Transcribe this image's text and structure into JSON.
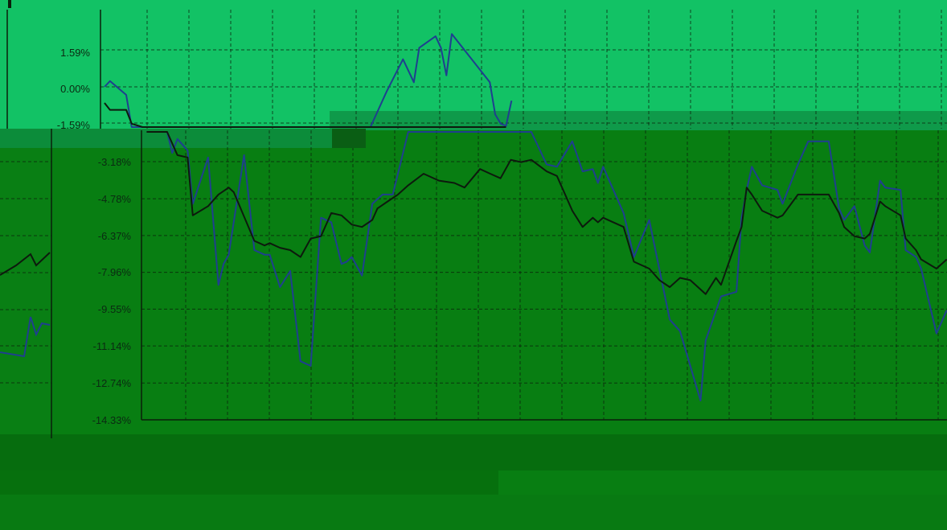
{
  "colors": {
    "bright_panel": "#12c265",
    "dark_panel": "#087e12",
    "bottom_strip": "#066d0e",
    "series_blue": "#1f3f8f",
    "series_black": "#0d1a0d",
    "grid": "#0b1f0b",
    "text": "#0b2a12"
  },
  "chart_data": {
    "type": "line",
    "title": "",
    "xlabel": "",
    "ylabel": "",
    "ylim": [
      -14.33,
      3.18
    ],
    "y_ticks": [
      "1.59%",
      "0.00%",
      "-1.59%",
      "-3.18%",
      "-4.78%",
      "-6.37%",
      "-7.96%",
      "-9.55%",
      "-11.14%",
      "-12.74%",
      "-14.33%"
    ],
    "y_tick_values": [
      1.59,
      0.0,
      -1.59,
      -3.18,
      -4.78,
      -6.37,
      -7.96,
      -9.55,
      -11.14,
      -12.74,
      -14.33
    ],
    "grid": true,
    "legend": "none",
    "series": [
      {
        "color": "#1f3f8f",
        "values": [
          [
            0,
            0.0
          ],
          [
            1,
            0.25
          ],
          [
            4,
            -0.35
          ],
          [
            5,
            -1.9
          ],
          [
            6,
            -2.8
          ],
          [
            7,
            -2.2
          ],
          [
            9,
            -2.7
          ],
          [
            10,
            -5.0
          ],
          [
            13,
            -3.0
          ],
          [
            15,
            -8.5
          ],
          [
            16,
            -7.6
          ],
          [
            17,
            -7.2
          ],
          [
            20,
            -2.9
          ],
          [
            22,
            -7.0
          ],
          [
            24,
            -7.2
          ],
          [
            25,
            -7.2
          ],
          [
            27,
            -8.6
          ],
          [
            29,
            -7.9
          ],
          [
            31,
            -11.8
          ],
          [
            33,
            -12.0
          ],
          [
            35,
            -5.6
          ],
          [
            37,
            -5.8
          ],
          [
            39,
            -7.6
          ],
          [
            40,
            -7.5
          ],
          [
            41,
            -7.3
          ],
          [
            43,
            -8.1
          ],
          [
            45,
            -5.0
          ],
          [
            46,
            -4.8
          ],
          [
            47,
            -4.6
          ],
          [
            49,
            -4.6
          ],
          [
            52,
            -0.2
          ],
          [
            55,
            1.2
          ],
          [
            57,
            0.2
          ],
          [
            58,
            1.7
          ],
          [
            61,
            2.2
          ],
          [
            62,
            1.7
          ],
          [
            63,
            0.5
          ],
          [
            64,
            2.3
          ],
          [
            67,
            1.4
          ],
          [
            69,
            0.8
          ],
          [
            71,
            0.2
          ],
          [
            72,
            -1.2
          ],
          [
            73,
            -1.6
          ],
          [
            74,
            -1.7
          ],
          [
            75,
            -0.6
          ],
          [
            76,
            -1.4
          ],
          [
            79,
            -3.3
          ],
          [
            81,
            -3.4
          ],
          [
            84,
            -2.3
          ],
          [
            86,
            -3.6
          ],
          [
            88,
            -3.5
          ],
          [
            89,
            -4.1
          ],
          [
            90,
            -3.4
          ],
          [
            94,
            -5.4
          ],
          [
            96,
            -7.3
          ],
          [
            99,
            -5.7
          ],
          [
            103,
            -10.0
          ],
          [
            105,
            -10.5
          ],
          [
            109,
            -13.5
          ],
          [
            110,
            -10.9
          ],
          [
            113,
            -9.0
          ],
          [
            116,
            -8.8
          ],
          [
            117,
            -5.6
          ],
          [
            118,
            -4.4
          ],
          [
            119,
            -3.4
          ],
          [
            121,
            -4.2
          ],
          [
            124,
            -4.4
          ],
          [
            125,
            -5.0
          ],
          [
            128,
            -3.3
          ],
          [
            130,
            -2.3
          ],
          [
            134,
            -2.3
          ],
          [
            136,
            -5.2
          ],
          [
            137,
            -5.7
          ],
          [
            139,
            -5.1
          ],
          [
            141,
            -6.8
          ],
          [
            142,
            -7.1
          ],
          [
            144,
            -4.0
          ],
          [
            145,
            -4.3
          ],
          [
            148,
            -4.4
          ],
          [
            149,
            -7.0
          ],
          [
            151,
            -7.3
          ],
          [
            152,
            -7.8
          ],
          [
            155,
            -10.6
          ],
          [
            157,
            -9.6
          ]
        ]
      },
      {
        "color": "#0d1a0d",
        "values": [
          [
            0,
            -0.7
          ],
          [
            1,
            -1.0
          ],
          [
            4,
            -1.0
          ],
          [
            5,
            -1.6
          ],
          [
            7,
            -2.9
          ],
          [
            9,
            -3.0
          ],
          [
            10,
            -5.5
          ],
          [
            13,
            -5.1
          ],
          [
            15,
            -4.6
          ],
          [
            17,
            -4.3
          ],
          [
            18,
            -4.5
          ],
          [
            22,
            -6.6
          ],
          [
            24,
            -6.8
          ],
          [
            25,
            -6.7
          ],
          [
            27,
            -6.9
          ],
          [
            29,
            -7.0
          ],
          [
            31,
            -7.3
          ],
          [
            33,
            -6.5
          ],
          [
            35,
            -6.4
          ],
          [
            37,
            -5.4
          ],
          [
            39,
            -5.5
          ],
          [
            40,
            -5.7
          ],
          [
            41,
            -5.9
          ],
          [
            43,
            -6.0
          ],
          [
            45,
            -5.7
          ],
          [
            46,
            -5.2
          ],
          [
            48,
            -4.9
          ],
          [
            50,
            -4.6
          ],
          [
            52,
            -4.2
          ],
          [
            55,
            -3.7
          ],
          [
            58,
            -4.0
          ],
          [
            61,
            -4.1
          ],
          [
            63,
            -4.3
          ],
          [
            66,
            -3.5
          ],
          [
            68,
            -3.7
          ],
          [
            70,
            -3.9
          ],
          [
            72,
            -3.1
          ],
          [
            74,
            -3.2
          ],
          [
            76,
            -3.1
          ],
          [
            79,
            -3.6
          ],
          [
            81,
            -3.8
          ],
          [
            84,
            -5.3
          ],
          [
            86,
            -6.0
          ],
          [
            88,
            -5.6
          ],
          [
            89,
            -5.8
          ],
          [
            90,
            -5.6
          ],
          [
            94,
            -6.0
          ],
          [
            96,
            -7.5
          ],
          [
            99,
            -7.8
          ],
          [
            101,
            -8.3
          ],
          [
            103,
            -8.6
          ],
          [
            105,
            -8.2
          ],
          [
            107,
            -8.3
          ],
          [
            109,
            -8.7
          ],
          [
            110,
            -8.9
          ],
          [
            112,
            -8.2
          ],
          [
            113,
            -8.5
          ],
          [
            116,
            -6.6
          ],
          [
            117,
            -6.0
          ],
          [
            118,
            -4.3
          ],
          [
            119,
            -4.6
          ],
          [
            121,
            -5.3
          ],
          [
            124,
            -5.6
          ],
          [
            125,
            -5.5
          ],
          [
            128,
            -4.6
          ],
          [
            130,
            -4.6
          ],
          [
            134,
            -4.6
          ],
          [
            136,
            -5.4
          ],
          [
            137,
            -6.0
          ],
          [
            139,
            -6.4
          ],
          [
            141,
            -6.5
          ],
          [
            142,
            -6.3
          ],
          [
            144,
            -4.9
          ],
          [
            145,
            -5.1
          ],
          [
            148,
            -5.5
          ],
          [
            149,
            -6.5
          ],
          [
            151,
            -7.0
          ],
          [
            152,
            -7.4
          ],
          [
            155,
            -7.8
          ],
          [
            157,
            -7.4
          ]
        ]
      }
    ]
  }
}
